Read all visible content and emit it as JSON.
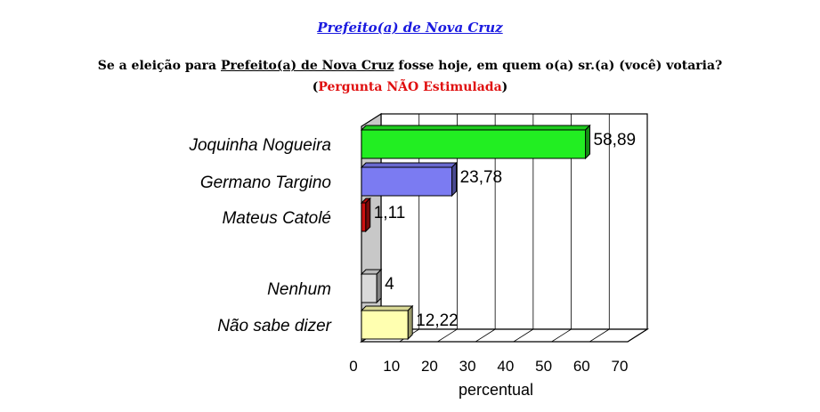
{
  "header": {
    "title": "Prefeito(a) de Nova Cruz",
    "question_prefix": "Se a eleição para ",
    "question_underlined": "Prefeito(a) de Nova Cruz",
    "question_suffix": " fosse hoje, em quem o(a) sr.(a) (você) votaria?",
    "note_open": "(",
    "note": "Pergunta NÃO Estimulada",
    "note_close": ")"
  },
  "chart_data": {
    "type": "bar",
    "orientation": "horizontal",
    "categories": [
      "Joquinha Nogueira",
      "Germano Targino",
      "Mateus Catolé",
      "Nenhum",
      "Não sabe dizer"
    ],
    "values": [
      58.89,
      23.78,
      1.11,
      4,
      12.22
    ],
    "value_labels": [
      "58,89",
      "23,78",
      "1,11",
      "4",
      "12,22"
    ],
    "colors": [
      "#22ee22",
      "#7b7bf2",
      "#cc1111",
      "#d9d9d9",
      "#ffffb0"
    ],
    "xlabel": "percentual",
    "xlim": [
      0,
      70
    ],
    "xticks": [
      "0",
      "10",
      "20",
      "30",
      "40",
      "50",
      "60",
      "70"
    ],
    "grid": true,
    "legend": "none"
  }
}
